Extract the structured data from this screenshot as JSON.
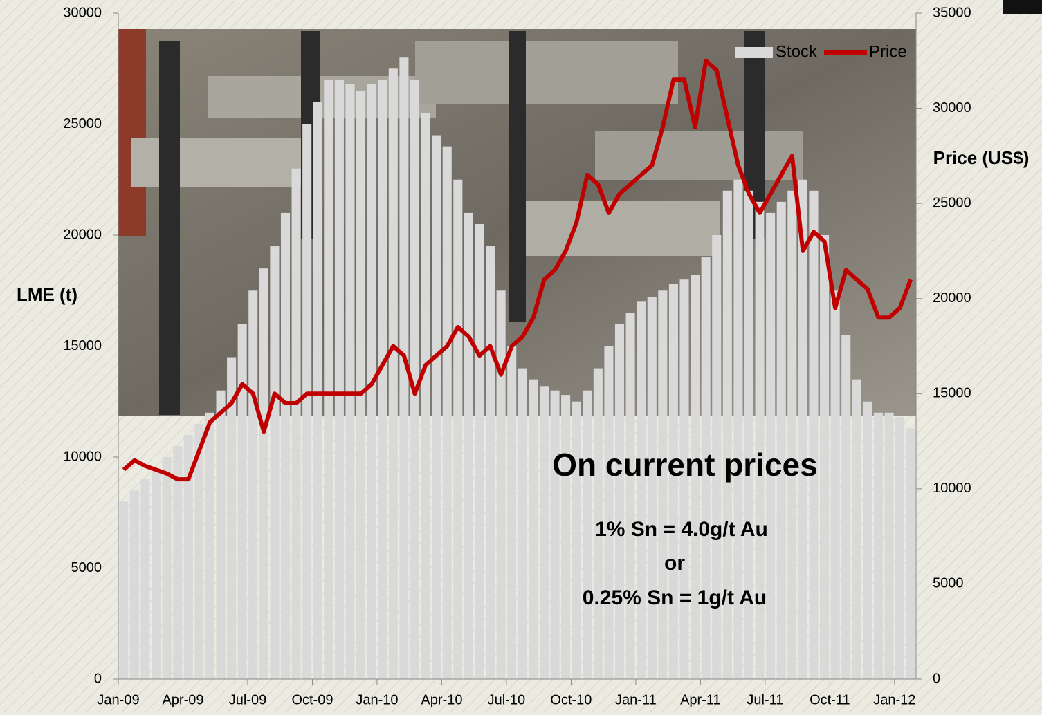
{
  "chart_data": {
    "type": "bar-line",
    "y_label": "LME (t)",
    "y2_label": "Price (US$)",
    "annotations": [
      "On current prices",
      "1% Sn = 4.0g/t Au",
      "or",
      "0.25% Sn = 1g/t Au"
    ],
    "categories": [
      "Jan-09",
      null,
      null,
      null,
      null,
      null,
      "Apr-09",
      null,
      null,
      null,
      null,
      null,
      "Jul-09",
      null,
      null,
      null,
      null,
      null,
      "Oct-09",
      null,
      null,
      null,
      null,
      null,
      "Jan-10",
      null,
      null,
      null,
      null,
      null,
      "Apr-10",
      null,
      null,
      null,
      null,
      null,
      "Jul-10",
      null,
      null,
      null,
      null,
      null,
      "Oct-10",
      null,
      null,
      null,
      null,
      null,
      "Jan-11",
      null,
      null,
      null,
      null,
      null,
      "Apr-11",
      null,
      null,
      null,
      null,
      null,
      "Jul-11",
      null,
      null,
      null,
      null,
      null,
      "Oct-11",
      null,
      null,
      null,
      null,
      null,
      "Jan-12",
      null
    ],
    "series": [
      {
        "name": "Stock",
        "type": "bar",
        "color": "#d9d9d9",
        "values": [
          8000,
          8500,
          9000,
          9500,
          10000,
          10500,
          11000,
          11500,
          12000,
          13000,
          14500,
          16000,
          17500,
          18500,
          19500,
          21000,
          23000,
          25000,
          26000,
          27000,
          27000,
          26800,
          26500,
          26800,
          27000,
          27500,
          28000,
          27000,
          25500,
          24500,
          24000,
          22500,
          21000,
          20500,
          19500,
          17500,
          15000,
          14000,
          13500,
          13200,
          13000,
          12800,
          12500,
          13000,
          14000,
          15000,
          16000,
          16500,
          17000,
          17200,
          17500,
          17800,
          18000,
          18200,
          19000,
          20000,
          22000,
          22500,
          22000,
          21500,
          21000,
          21500,
          22000,
          22500,
          22000,
          20000,
          17500,
          15500,
          13500,
          12500,
          12000,
          12000,
          11800,
          11300
        ]
      },
      {
        "name": "Price",
        "type": "line",
        "color": "#c00000",
        "axis": "y2",
        "values": [
          11000,
          11500,
          11200,
          11000,
          10800,
          10500,
          10500,
          12000,
          13500,
          14000,
          14500,
          15500,
          15000,
          13000,
          15000,
          14500,
          14500,
          15000,
          15000,
          15000,
          15000,
          15000,
          15000,
          15500,
          16500,
          17500,
          17000,
          15000,
          16500,
          17000,
          17500,
          18500,
          18000,
          17000,
          17500,
          16000,
          17500,
          18000,
          19000,
          21000,
          21500,
          22500,
          24000,
          26500,
          26000,
          24500,
          25500,
          26000,
          26500,
          27000,
          29000,
          31500,
          31500,
          29000,
          32500,
          32000,
          29500,
          27000,
          25500,
          24500,
          25500,
          26500,
          27500,
          22500,
          23500,
          23000,
          19500,
          21500,
          21000,
          20500,
          19000,
          19000,
          19500,
          21000
        ]
      }
    ],
    "ylim": [
      0,
      30000
    ],
    "yticks": [
      0,
      5000,
      10000,
      15000,
      20000,
      25000,
      30000
    ],
    "y2lim": [
      0,
      35000
    ],
    "y2ticks": [
      0,
      5000,
      10000,
      15000,
      20000,
      25000,
      30000,
      35000
    ]
  }
}
